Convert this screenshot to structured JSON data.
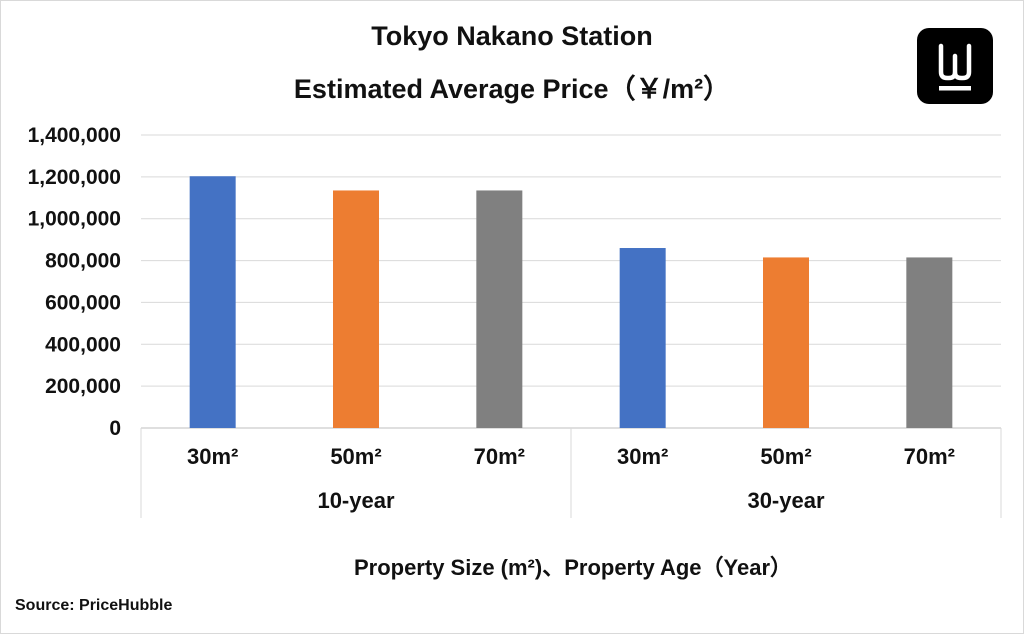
{
  "title_lines": [
    "Tokyo Nakano Station",
    "Estimated Average Price（￥/m²）"
  ],
  "source_text": "Source: PriceHubble",
  "logo": {
    "icon": "brand-logo-icon",
    "background": "#000000",
    "foreground": "#ffffff"
  },
  "chart_data": {
    "type": "bar",
    "title": "Tokyo Nakano Station Estimated Average Price（￥/m²）",
    "xlabel": "Property Size (m²)、Property Age（Year）",
    "ylabel": "",
    "ylim": [
      0,
      1400000
    ],
    "yticks": [
      0,
      200000,
      400000,
      600000,
      800000,
      1000000,
      1200000,
      1400000
    ],
    "ytick_labels": [
      "0",
      "200,000",
      "400,000",
      "600,000",
      "800,000",
      "1,000,000",
      "1,200,000",
      "1,400,000"
    ],
    "grid": true,
    "groups": [
      {
        "label": "10-year",
        "categories": [
          "30m²",
          "50m²",
          "70m²"
        ],
        "values": [
          1203000,
          1135000,
          1135000
        ]
      },
      {
        "label": "30-year",
        "categories": [
          "30m²",
          "50m²",
          "70m²"
        ],
        "values": [
          860000,
          815000,
          815000
        ]
      }
    ],
    "colors": [
      "#4472c4",
      "#ed7d31",
      "#808080"
    ]
  }
}
